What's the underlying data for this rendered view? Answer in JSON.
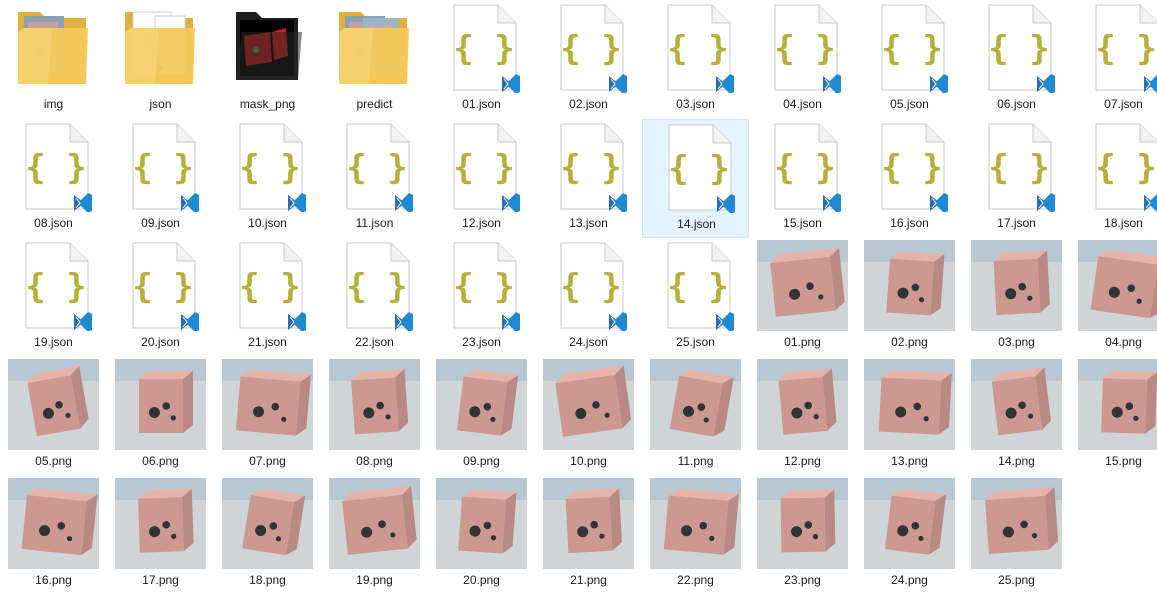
{
  "window": {
    "colors": {
      "folder": "#f3c95b",
      "folder_dark": "#e0b040",
      "braces": "#b6b03a",
      "vscode": "#1f8ad2",
      "selected_bg": "#e5f3ff"
    }
  },
  "items": [
    {
      "name": "img",
      "kind": "folder",
      "preview": "photo"
    },
    {
      "name": "json",
      "kind": "folder",
      "preview": "json"
    },
    {
      "name": "mask_png",
      "kind": "folder-mask",
      "preview": "mask"
    },
    {
      "name": "predict",
      "kind": "folder",
      "preview": "photo2"
    },
    {
      "name": "01.json",
      "kind": "json"
    },
    {
      "name": "02.json",
      "kind": "json"
    },
    {
      "name": "03.json",
      "kind": "json"
    },
    {
      "name": "04.json",
      "kind": "json"
    },
    {
      "name": "05.json",
      "kind": "json"
    },
    {
      "name": "06.json",
      "kind": "json"
    },
    {
      "name": "07.json",
      "kind": "json"
    },
    {
      "name": "08.json",
      "kind": "json"
    },
    {
      "name": "09.json",
      "kind": "json"
    },
    {
      "name": "10.json",
      "kind": "json"
    },
    {
      "name": "11.json",
      "kind": "json"
    },
    {
      "name": "12.json",
      "kind": "json"
    },
    {
      "name": "13.json",
      "kind": "json"
    },
    {
      "name": "14.json",
      "kind": "json",
      "selected": true
    },
    {
      "name": "15.json",
      "kind": "json"
    },
    {
      "name": "16.json",
      "kind": "json"
    },
    {
      "name": "17.json",
      "kind": "json"
    },
    {
      "name": "18.json",
      "kind": "json"
    },
    {
      "name": "19.json",
      "kind": "json"
    },
    {
      "name": "20.json",
      "kind": "json"
    },
    {
      "name": "21.json",
      "kind": "json"
    },
    {
      "name": "22.json",
      "kind": "json"
    },
    {
      "name": "23.json",
      "kind": "json"
    },
    {
      "name": "24.json",
      "kind": "json"
    },
    {
      "name": "25.json",
      "kind": "json"
    },
    {
      "name": "01.png",
      "kind": "png"
    },
    {
      "name": "02.png",
      "kind": "png"
    },
    {
      "name": "03.png",
      "kind": "png"
    },
    {
      "name": "04.png",
      "kind": "png"
    },
    {
      "name": "05.png",
      "kind": "png"
    },
    {
      "name": "06.png",
      "kind": "png"
    },
    {
      "name": "07.png",
      "kind": "png"
    },
    {
      "name": "08.png",
      "kind": "png"
    },
    {
      "name": "09.png",
      "kind": "png"
    },
    {
      "name": "10.png",
      "kind": "png"
    },
    {
      "name": "11.png",
      "kind": "png"
    },
    {
      "name": "12.png",
      "kind": "png"
    },
    {
      "name": "13.png",
      "kind": "png"
    },
    {
      "name": "14.png",
      "kind": "png"
    },
    {
      "name": "15.png",
      "kind": "png"
    },
    {
      "name": "16.png",
      "kind": "png"
    },
    {
      "name": "17.png",
      "kind": "png"
    },
    {
      "name": "18.png",
      "kind": "png"
    },
    {
      "name": "19.png",
      "kind": "png"
    },
    {
      "name": "20.png",
      "kind": "png"
    },
    {
      "name": "21.png",
      "kind": "png"
    },
    {
      "name": "22.png",
      "kind": "png"
    },
    {
      "name": "23.png",
      "kind": "png"
    },
    {
      "name": "24.png",
      "kind": "png"
    },
    {
      "name": "25.png",
      "kind": "png"
    }
  ]
}
